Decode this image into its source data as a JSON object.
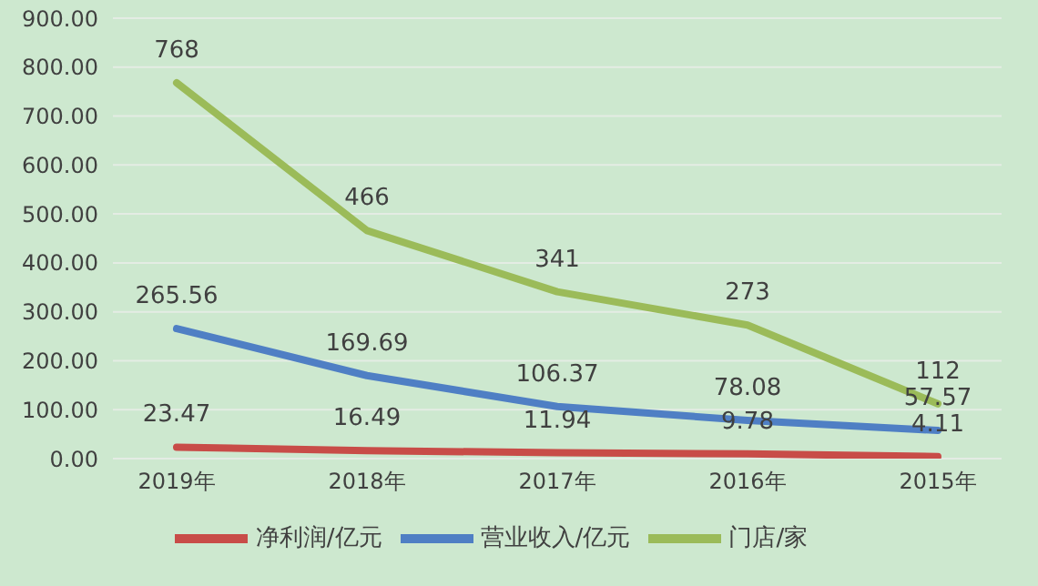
{
  "chart_data": {
    "type": "line",
    "categories": [
      "2019年",
      "2018年",
      "2017年",
      "2016年",
      "2015年"
    ],
    "series": [
      {
        "name": "营业收入/亿元",
        "color": "#4f7fc4",
        "values": [
          265.56,
          169.69,
          106.37,
          78.08,
          57.57
        ]
      },
      {
        "name": "净利润/亿元",
        "color": "#c84c48",
        "values": [
          23.47,
          16.49,
          11.94,
          9.78,
          4.11
        ]
      },
      {
        "name": "门店/家",
        "color": "#9bbb59",
        "values": [
          768,
          466,
          341,
          273,
          112
        ]
      }
    ],
    "ylim": [
      0,
      900
    ],
    "yticks": [
      {
        "value": 0,
        "label": "0.00"
      },
      {
        "value": 100,
        "label": "100.00"
      },
      {
        "value": 200,
        "label": "200.00"
      },
      {
        "value": 300,
        "label": "300.00"
      },
      {
        "value": 400,
        "label": "400.00"
      },
      {
        "value": 500,
        "label": "500.00"
      },
      {
        "value": 600,
        "label": "600.00"
      },
      {
        "value": 700,
        "label": "700.00"
      },
      {
        "value": 800,
        "label": "800.00"
      },
      {
        "value": 900,
        "label": "900.00"
      }
    ],
    "grid": "y",
    "legend": "bottom",
    "marker": "none",
    "line_style": "solid",
    "data_labels": true
  }
}
